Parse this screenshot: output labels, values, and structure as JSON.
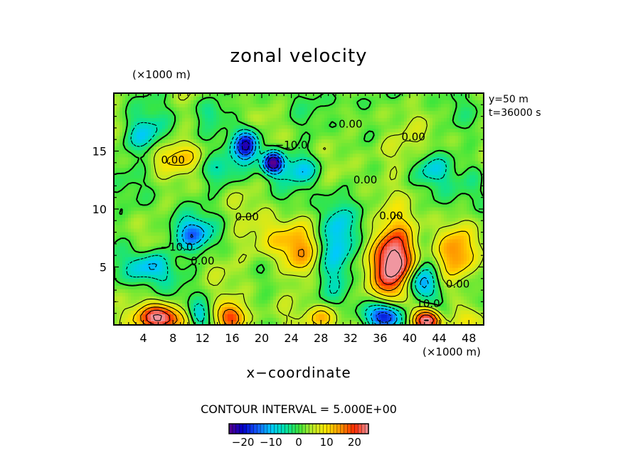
{
  "chart_data": {
    "type": "heatmap",
    "title": "zonal velocity",
    "xlabel": "x−coordinate",
    "x_unit": "(×1000 m)",
    "y_unit": "(×1000 m)",
    "xlim": [
      0,
      50
    ],
    "ylim": [
      0,
      20
    ],
    "x_ticks": [
      4,
      8,
      12,
      16,
      20,
      24,
      28,
      32,
      36,
      40,
      44,
      48
    ],
    "y_ticks": [
      5,
      10,
      15
    ],
    "annotations": [
      "y=50 m",
      "t=36000 s"
    ],
    "contour_interval_text": "CONTOUR INTERVAL = 5.000E+00",
    "contour_interval": 5,
    "contour_labels": [
      {
        "text": "0.00",
        "x": 32,
        "y": 17.3
      },
      {
        "text": "0.00",
        "x": 40.5,
        "y": 16.2
      },
      {
        "text": "0.00",
        "x": 8,
        "y": 14.2
      },
      {
        "text": "−10.0",
        "x": 24,
        "y": 15.5
      },
      {
        "text": "0.00",
        "x": 34,
        "y": 12.5
      },
      {
        "text": "0.00",
        "x": 18,
        "y": 9.3
      },
      {
        "text": "0.00",
        "x": 37.5,
        "y": 9.4
      },
      {
        "text": "−10.0",
        "x": 8.5,
        "y": 6.7
      },
      {
        "text": "0.00",
        "x": 12,
        "y": 5.5
      },
      {
        "text": "0.00",
        "x": 46.5,
        "y": 3.5
      },
      {
        "text": "10.0",
        "x": 42.5,
        "y": 1.8
      }
    ],
    "colorbar": {
      "min": -25,
      "max": 25,
      "tick_values": [
        -20,
        -10,
        0,
        10,
        20
      ],
      "tick_labels": [
        "−20",
        "−10",
        "0",
        "10",
        "20"
      ]
    },
    "features": [
      {
        "x": 38,
        "y": 5.5,
        "v": 27,
        "sx": 2.0,
        "sy": 2.2
      },
      {
        "x": 46,
        "y": 6.0,
        "v": 13,
        "sx": 1.8,
        "sy": 1.6
      },
      {
        "x": 22,
        "y": 7.2,
        "v": 9,
        "sx": 3.0,
        "sy": 1.4
      },
      {
        "x": 25,
        "y": 5.8,
        "v": 8,
        "sx": 1.5,
        "sy": 1.4
      },
      {
        "x": 6.5,
        "y": 0.6,
        "v": 24,
        "sx": 2.2,
        "sy": 0.8
      },
      {
        "x": 16,
        "y": 0.6,
        "v": 20,
        "sx": 1.4,
        "sy": 0.9
      },
      {
        "x": 28.5,
        "y": 0.6,
        "v": 11,
        "sx": 1.6,
        "sy": 0.8
      },
      {
        "x": 42.5,
        "y": 0.4,
        "v": 23,
        "sx": 1.6,
        "sy": 0.7
      },
      {
        "x": 48,
        "y": 0.6,
        "v": 8,
        "sx": 1.3,
        "sy": 0.8
      },
      {
        "x": 8.5,
        "y": 14.6,
        "v": 8,
        "sx": 3.0,
        "sy": 0.9
      },
      {
        "x": 37,
        "y": 15.0,
        "v": 5,
        "sx": 2.5,
        "sy": 1.2
      },
      {
        "x": 18,
        "y": 15.5,
        "v": -24,
        "sx": 1.2,
        "sy": 1.0
      },
      {
        "x": 21.5,
        "y": 14.0,
        "v": -25,
        "sx": 1.0,
        "sy": 0.7
      },
      {
        "x": 25.5,
        "y": 13.5,
        "v": -11,
        "sx": 1.8,
        "sy": 0.9
      },
      {
        "x": 30,
        "y": 7.0,
        "v": -13,
        "sx": 1.5,
        "sy": 2.4
      },
      {
        "x": 10.5,
        "y": 7.8,
        "v": -14,
        "sx": 2.0,
        "sy": 1.0
      },
      {
        "x": 5,
        "y": 5.0,
        "v": -13,
        "sx": 2.2,
        "sy": 1.0
      },
      {
        "x": 36.5,
        "y": 0.8,
        "v": -23,
        "sx": 1.6,
        "sy": 0.8
      },
      {
        "x": 41.5,
        "y": 3.5,
        "v": -16,
        "sx": 1.6,
        "sy": 1.0
      },
      {
        "x": 44.5,
        "y": 1.0,
        "v": -10,
        "sx": 1.2,
        "sy": 0.8
      },
      {
        "x": 11.5,
        "y": 0.8,
        "v": -11,
        "sx": 1.0,
        "sy": 0.8
      },
      {
        "x": 4,
        "y": 16.2,
        "v": -10,
        "sx": 2.0,
        "sy": 1.2
      },
      {
        "x": 14.5,
        "y": 13.3,
        "v": -7,
        "sx": 1.8,
        "sy": 0.9
      },
      {
        "x": 32,
        "y": 19.4,
        "v": -5,
        "sx": 2.0,
        "sy": 0.6
      },
      {
        "x": 43,
        "y": 13.5,
        "v": -8,
        "sx": 1.8,
        "sy": 1.0
      },
      {
        "x": 13,
        "y": 18.5,
        "v": -8,
        "sx": 1.2,
        "sy": 0.9
      },
      {
        "x": 48.5,
        "y": 12.5,
        "v": -5,
        "sx": 1.3,
        "sy": 1.5
      }
    ]
  }
}
